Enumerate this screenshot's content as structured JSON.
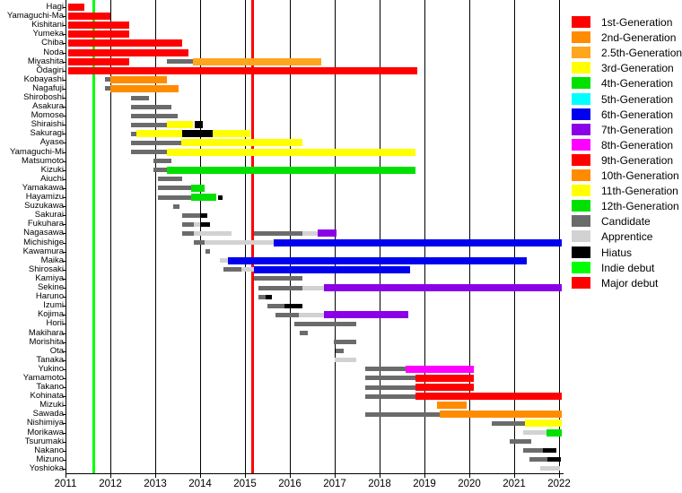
{
  "chart_data": {
    "type": "gantt-timeline",
    "title": "",
    "x_axis": {
      "min": 2011,
      "max": 2022,
      "ticks": [
        2011,
        2012,
        2013,
        2014,
        2015,
        2016,
        2017,
        2018,
        2019,
        2020,
        2021,
        2022
      ],
      "grid": true
    },
    "statuses": {
      "gen1": {
        "label": "1st-Generation",
        "color": "#FF0000"
      },
      "gen2": {
        "label": "2nd-Generation",
        "color": "#FF8C00"
      },
      "gen2_5": {
        "label": "2.5th-Generation",
        "color": "#FFA51E"
      },
      "gen3": {
        "label": "3rd-Generation",
        "color": "#FFFF00"
      },
      "gen4": {
        "label": "4th-Generation",
        "color": "#00E100"
      },
      "gen5": {
        "label": "5th-Generation",
        "color": "#00FFFF"
      },
      "gen6": {
        "label": "6th-Generation",
        "color": "#0000EE"
      },
      "gen7": {
        "label": "7th-Generation",
        "color": "#8B00E6"
      },
      "gen8": {
        "label": "8th-Generation",
        "color": "#FF00FF"
      },
      "gen9": {
        "label": "9th-Generation",
        "color": "#FF0000"
      },
      "gen10": {
        "label": "10th-Generation",
        "color": "#FF8C00"
      },
      "gen11": {
        "label": "11th-Generation",
        "color": "#FFFF00"
      },
      "gen12": {
        "label": "12th-Generation",
        "color": "#00E100"
      },
      "candidate": {
        "label": "Candidate",
        "color": "#6B6B6B"
      },
      "apprentice": {
        "label": "Apprentice",
        "color": "#D2D2D2"
      },
      "hiatus": {
        "label": "Hiatus",
        "color": "#000000"
      },
      "indie": {
        "label": "Indie debut",
        "color": "#00FF00"
      },
      "major": {
        "label": "Major debut",
        "color": "#FF0000"
      }
    },
    "legend_order": [
      "gen1",
      "gen2",
      "gen2_5",
      "gen3",
      "gen4",
      "gen5",
      "gen6",
      "gen7",
      "gen8",
      "gen9",
      "gen10",
      "gen11",
      "gen12",
      "candidate",
      "apprentice",
      "hiatus",
      "indie",
      "major"
    ],
    "events": [
      {
        "label": "Indie debut",
        "year": 2011.62,
        "status": "indie"
      },
      {
        "label": "Major debut",
        "year": 2015.16,
        "status": "major"
      }
    ],
    "members": [
      {
        "name": "Hagi",
        "segments": [
          [
            2011.05,
            2011.42,
            "gen1"
          ]
        ]
      },
      {
        "name": "Yamaguchi-Ma",
        "segments": [
          [
            2011.05,
            2012.0,
            "gen1"
          ]
        ]
      },
      {
        "name": "Kishitani",
        "segments": [
          [
            2011.05,
            2012.42,
            "gen1"
          ]
        ]
      },
      {
        "name": "Yumeka",
        "segments": [
          [
            2011.05,
            2012.42,
            "gen1"
          ]
        ]
      },
      {
        "name": "Chiba",
        "segments": [
          [
            2011.05,
            2013.6,
            "gen1"
          ]
        ]
      },
      {
        "name": "Noda",
        "segments": [
          [
            2011.05,
            2013.74,
            "gen1"
          ]
        ]
      },
      {
        "name": "Miyashita",
        "segments": [
          [
            2011.05,
            2012.42,
            "gen1"
          ],
          [
            2013.26,
            2013.84,
            "candidate"
          ],
          [
            2013.84,
            2016.7,
            "gen2_5"
          ]
        ]
      },
      {
        "name": "Ōdagiri",
        "segments": [
          [
            2011.05,
            2018.84,
            "gen1"
          ]
        ]
      },
      {
        "name": "Kobayashi",
        "segments": [
          [
            2011.88,
            2012.0,
            "candidate"
          ],
          [
            2012.0,
            2013.26,
            "gen2"
          ]
        ]
      },
      {
        "name": "Nagafuji",
        "segments": [
          [
            2011.88,
            2012.0,
            "candidate"
          ],
          [
            2012.0,
            2013.52,
            "gen2"
          ]
        ]
      },
      {
        "name": "Shiroboshi",
        "segments": [
          [
            2012.46,
            2012.86,
            "candidate"
          ]
        ]
      },
      {
        "name": "Asakura",
        "segments": [
          [
            2012.46,
            2013.36,
            "candidate"
          ]
        ]
      },
      {
        "name": "Momose",
        "segments": [
          [
            2012.46,
            2013.5,
            "candidate"
          ]
        ]
      },
      {
        "name": "Shiraishi",
        "segments": [
          [
            2012.46,
            2013.26,
            "candidate"
          ],
          [
            2013.26,
            2013.84,
            "gen3"
          ],
          [
            2013.88,
            2014.06,
            "hiatus",
            "big"
          ]
        ]
      },
      {
        "name": "Sakuragi",
        "segments": [
          [
            2012.46,
            2012.58,
            "candidate"
          ],
          [
            2012.58,
            2013.6,
            "gen3"
          ],
          [
            2013.6,
            2014.28,
            "hiatus",
            "big"
          ],
          [
            2014.28,
            2015.12,
            "gen3"
          ]
        ]
      },
      {
        "name": "Ayase",
        "segments": [
          [
            2012.46,
            2013.58,
            "candidate"
          ],
          [
            2013.58,
            2016.28,
            "gen3"
          ]
        ]
      },
      {
        "name": "Yamaguchi-Mi",
        "segments": [
          [
            2012.46,
            2013.26,
            "candidate"
          ],
          [
            2013.26,
            2018.8,
            "gen3"
          ]
        ]
      },
      {
        "name": "Matsumoto",
        "segments": [
          [
            2012.96,
            2013.36,
            "candidate"
          ]
        ]
      },
      {
        "name": "Kizuki",
        "segments": [
          [
            2012.96,
            2013.26,
            "candidate"
          ],
          [
            2013.26,
            2018.8,
            "gen4"
          ]
        ]
      },
      {
        "name": "Aiuchi",
        "segments": [
          [
            2013.06,
            2013.6,
            "candidate"
          ]
        ]
      },
      {
        "name": "Yamakawa",
        "segments": [
          [
            2013.06,
            2013.8,
            "candidate"
          ],
          [
            2013.8,
            2014.1,
            "gen4"
          ]
        ]
      },
      {
        "name": "Hayamizu",
        "segments": [
          [
            2013.06,
            2013.8,
            "candidate"
          ],
          [
            2013.8,
            2014.36,
            "gen4"
          ],
          [
            2014.4,
            2014.5,
            "hiatus"
          ]
        ]
      },
      {
        "name": "Suzukawa",
        "segments": [
          [
            2013.4,
            2013.54,
            "candidate"
          ]
        ]
      },
      {
        "name": "Sakurai",
        "segments": [
          [
            2013.6,
            2014.0,
            "candidate"
          ],
          [
            2014.0,
            2014.16,
            "hiatus"
          ]
        ]
      },
      {
        "name": "Fukuhara",
        "segments": [
          [
            2013.6,
            2013.86,
            "candidate"
          ],
          [
            2013.86,
            2014.0,
            "apprentice"
          ],
          [
            2014.0,
            2014.22,
            "hiatus"
          ]
        ]
      },
      {
        "name": "Nagasawa",
        "segments": [
          [
            2013.6,
            2013.86,
            "candidate"
          ],
          [
            2013.86,
            2014.7,
            "apprentice"
          ],
          [
            2015.2,
            2016.28,
            "candidate"
          ],
          [
            2016.28,
            2016.62,
            "apprentice"
          ],
          [
            2016.62,
            2017.04,
            "gen7"
          ]
        ]
      },
      {
        "name": "Michishige",
        "segments": [
          [
            2013.86,
            2014.1,
            "candidate"
          ],
          [
            2014.1,
            2015.64,
            "apprentice"
          ],
          [
            2015.64,
            2022.05,
            "gen6"
          ]
        ]
      },
      {
        "name": "Kawamura",
        "segments": [
          [
            2014.12,
            2014.22,
            "candidate"
          ]
        ]
      },
      {
        "name": "Maika",
        "segments": [
          [
            2014.44,
            2014.62,
            "apprentice"
          ],
          [
            2014.62,
            2021.28,
            "gen6"
          ]
        ]
      },
      {
        "name": "Shirosaki",
        "segments": [
          [
            2014.52,
            2014.92,
            "candidate"
          ],
          [
            2014.92,
            2015.2,
            "apprentice"
          ],
          [
            2015.2,
            2018.68,
            "gen6"
          ]
        ]
      },
      {
        "name": "Kamiya",
        "segments": [
          [
            2015.2,
            2016.28,
            "candidate"
          ]
        ]
      },
      {
        "name": "Sekine",
        "segments": [
          [
            2015.3,
            2016.28,
            "candidate"
          ],
          [
            2016.28,
            2016.76,
            "apprentice"
          ],
          [
            2016.76,
            2022.05,
            "gen7"
          ]
        ]
      },
      {
        "name": "Haruno",
        "segments": [
          [
            2015.3,
            2015.46,
            "candidate"
          ],
          [
            2015.46,
            2015.6,
            "hiatus"
          ]
        ]
      },
      {
        "name": "Izumi",
        "segments": [
          [
            2015.5,
            2015.88,
            "candidate"
          ],
          [
            2015.88,
            2016.28,
            "hiatus"
          ]
        ]
      },
      {
        "name": "Kojima",
        "segments": [
          [
            2015.68,
            2016.2,
            "candidate"
          ],
          [
            2016.2,
            2016.76,
            "apprentice"
          ],
          [
            2016.76,
            2018.64,
            "gen7"
          ]
        ]
      },
      {
        "name": "Horii",
        "segments": [
          [
            2016.1,
            2017.48,
            "candidate"
          ]
        ]
      },
      {
        "name": "Makihara",
        "segments": [
          [
            2016.22,
            2016.4,
            "candidate"
          ]
        ]
      },
      {
        "name": "Morishita",
        "segments": [
          [
            2016.98,
            2017.48,
            "candidate"
          ]
        ]
      },
      {
        "name": "Ota",
        "segments": [
          [
            2017.02,
            2017.2,
            "candidate"
          ]
        ]
      },
      {
        "name": "Tanaka",
        "segments": [
          [
            2017.0,
            2017.48,
            "apprentice"
          ]
        ]
      },
      {
        "name": "Yukino",
        "segments": [
          [
            2017.68,
            2018.58,
            "candidate"
          ],
          [
            2018.58,
            2020.1,
            "gen8"
          ]
        ]
      },
      {
        "name": "Yamamoto",
        "segments": [
          [
            2017.68,
            2018.8,
            "candidate"
          ],
          [
            2018.8,
            2020.1,
            "gen9"
          ]
        ]
      },
      {
        "name": "Takano",
        "segments": [
          [
            2017.68,
            2018.8,
            "candidate"
          ],
          [
            2018.8,
            2020.1,
            "gen9"
          ]
        ]
      },
      {
        "name": "Kohinata",
        "segments": [
          [
            2017.68,
            2018.8,
            "candidate"
          ],
          [
            2018.8,
            2022.05,
            "gen9"
          ]
        ]
      },
      {
        "name": "Mizuki",
        "segments": [
          [
            2019.28,
            2019.94,
            "gen10"
          ]
        ]
      },
      {
        "name": "Sawada",
        "segments": [
          [
            2017.68,
            2019.34,
            "candidate"
          ],
          [
            2019.34,
            2022.05,
            "gen10"
          ]
        ]
      },
      {
        "name": "Nishimiya",
        "segments": [
          [
            2020.5,
            2021.24,
            "candidate"
          ],
          [
            2021.24,
            2022.05,
            "gen11"
          ]
        ]
      },
      {
        "name": "Morikawa",
        "segments": [
          [
            2021.2,
            2021.72,
            "apprentice"
          ],
          [
            2021.72,
            2022.05,
            "gen12"
          ]
        ]
      },
      {
        "name": "Tsurumaki",
        "segments": [
          [
            2020.9,
            2021.38,
            "candidate"
          ]
        ]
      },
      {
        "name": "Nakano",
        "segments": [
          [
            2021.2,
            2021.64,
            "candidate"
          ],
          [
            2021.64,
            2021.94,
            "hiatus"
          ]
        ]
      },
      {
        "name": "Mizuno",
        "segments": [
          [
            2021.34,
            2021.74,
            "candidate"
          ],
          [
            2021.74,
            2022.04,
            "hiatus"
          ]
        ]
      },
      {
        "name": "Yoshioka",
        "segments": [
          [
            2021.58,
            2022.02,
            "apprentice"
          ]
        ]
      }
    ]
  }
}
